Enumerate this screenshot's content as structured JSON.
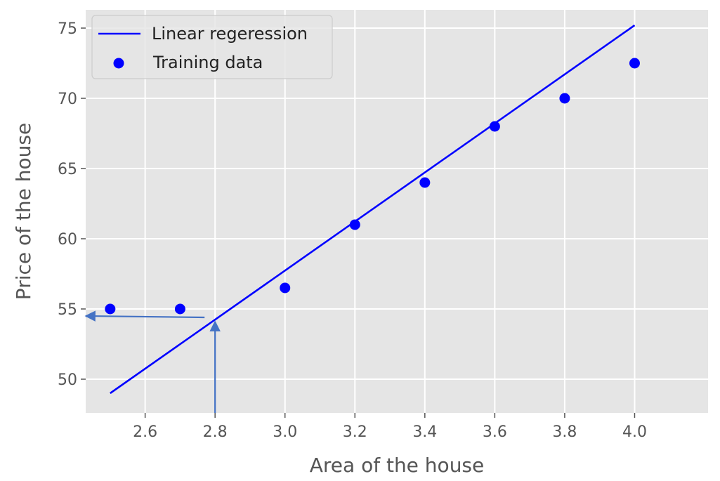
{
  "chart_data": {
    "type": "scatter",
    "title": "",
    "xlabel": "Area of the house",
    "ylabel": "Price of the house",
    "xlim": [
      2.43,
      4.21
    ],
    "ylim": [
      47.6,
      76.3
    ],
    "xticks": [
      2.6,
      2.8,
      3.0,
      3.2,
      3.4,
      3.6,
      3.8,
      4.0
    ],
    "xtick_labels": [
      "2.6",
      "2.8",
      "3.0",
      "3.2",
      "3.4",
      "3.6",
      "3.8",
      "4.0"
    ],
    "yticks": [
      50,
      55,
      60,
      65,
      70,
      75
    ],
    "ytick_labels": [
      "50",
      "55",
      "60",
      "65",
      "70",
      "75"
    ],
    "grid": true,
    "legend_position": "top-left",
    "series": [
      {
        "name": "Linear regeression",
        "kind": "line",
        "color": "#0000ff",
        "x": [
          2.5,
          4.0
        ],
        "y": [
          49.0,
          75.2
        ]
      },
      {
        "name": "Training data",
        "kind": "scatter",
        "color": "#0000ff",
        "x": [
          2.5,
          2.7,
          3.0,
          3.2,
          3.4,
          3.6,
          3.8,
          4.0
        ],
        "y": [
          55.0,
          55.0,
          56.5,
          61.0,
          64.0,
          68.0,
          70.0,
          72.5
        ]
      }
    ],
    "annotations": [
      {
        "kind": "arrow",
        "color": "#4472c4",
        "from": [
          2.8,
          47.6
        ],
        "to": [
          2.8,
          54.1
        ]
      },
      {
        "kind": "arrow",
        "color": "#4472c4",
        "from": [
          2.77,
          54.4
        ],
        "to": [
          2.43,
          54.5
        ]
      }
    ],
    "colors": {
      "plot_background": "#e5e5e5",
      "grid": "#ffffff",
      "text": "#555555"
    }
  }
}
